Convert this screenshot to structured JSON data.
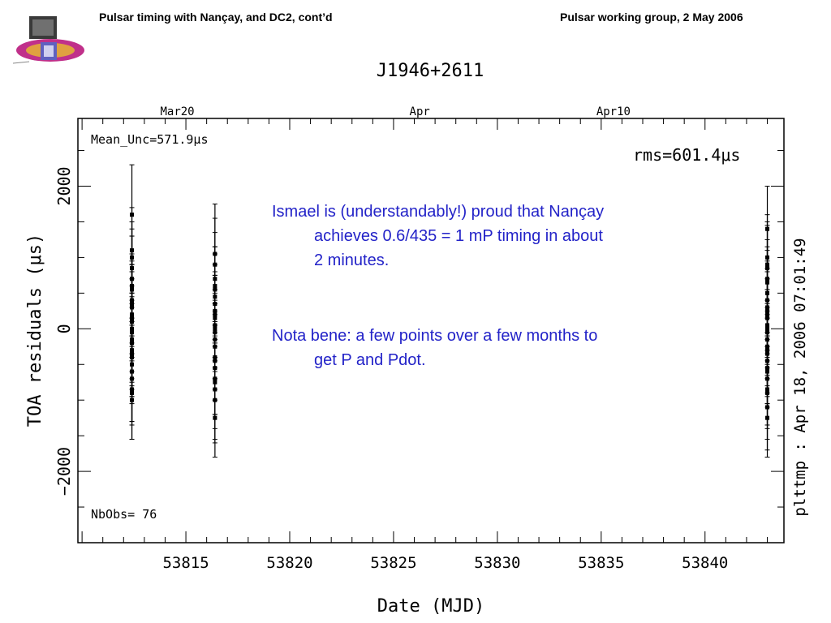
{
  "header": {
    "left": "Pulsar timing with Nançay, and DC2, cont’d",
    "right": "Pulsar working group, 2 May 2006"
  },
  "notes": {
    "line1a": "Ismael is (understandably!) proud that Nançay",
    "line1b": "achieves 0.6/435 = 1 mP timing in about",
    "line1c": "2 minutes.",
    "line2a": "Nota bene: a few points over a few months to",
    "line2b": "get P and Pdot."
  },
  "chart_data": {
    "type": "scatter",
    "title": "J1946+2611",
    "xlabel": "Date (MJD)",
    "ylabel": "TOA residuals (μs)",
    "xlim": [
      53809.8,
      53843.8
    ],
    "ylim": [
      -3000,
      2950
    ],
    "x_ticks": [
      53815,
      53820,
      53825,
      53830,
      53835,
      53840
    ],
    "y_ticks": [
      -2000,
      0,
      2000
    ],
    "y_tick_labels": [
      "−2000",
      "0",
      "2000"
    ],
    "top_axis_labels": [
      {
        "label": "Mar20",
        "mjd": 53814
      },
      {
        "label": "Apr",
        "mjd": 53826
      },
      {
        "label": "Apr10",
        "mjd": 53835
      }
    ],
    "annotations": {
      "mean_unc": "Mean_Unc=571.9μs",
      "rms": "rms=601.4μs",
      "nobs": "NbObs= 76",
      "timestamp": "plttmp : Apr 18, 2006 07:01:49"
    },
    "series": [
      {
        "mjd": 53812.4,
        "points": [
          [
            1600,
            700
          ],
          [
            1100,
            600
          ],
          [
            850,
            550
          ],
          [
            700,
            600
          ],
          [
            550,
            500
          ],
          [
            350,
            550
          ],
          [
            200,
            600
          ],
          [
            100,
            500
          ],
          [
            -50,
            550
          ],
          [
            -200,
            600
          ],
          [
            -350,
            500
          ],
          [
            -500,
            550
          ],
          [
            -700,
            600
          ],
          [
            -850,
            500
          ],
          [
            -1000,
            550
          ],
          [
            300,
            650
          ],
          [
            -300,
            650
          ],
          [
            0,
            700
          ],
          [
            1000,
            500
          ],
          [
            -900,
            650
          ],
          [
            150,
            550
          ],
          [
            -150,
            600
          ],
          [
            600,
            700
          ],
          [
            -600,
            700
          ],
          [
            400,
            500
          ],
          [
            -400,
            550
          ]
        ]
      },
      {
        "mjd": 53816.4,
        "points": [
          [
            1050,
            700
          ],
          [
            550,
            600
          ],
          [
            350,
            550
          ],
          [
            200,
            600
          ],
          [
            50,
            500
          ],
          [
            -150,
            550
          ],
          [
            -400,
            600
          ],
          [
            -700,
            500
          ],
          [
            -1250,
            550
          ],
          [
            900,
            650
          ],
          [
            450,
            600
          ],
          [
            -550,
            650
          ],
          [
            -850,
            700
          ],
          [
            0,
            550
          ],
          [
            250,
            500
          ],
          [
            -250,
            600
          ],
          [
            -1000,
            600
          ],
          [
            700,
            650
          ],
          [
            -50,
            550
          ],
          [
            150,
            600
          ],
          [
            -450,
            550
          ],
          [
            600,
            550
          ],
          [
            -750,
            650
          ]
        ]
      },
      {
        "mjd": 53843.0,
        "points": [
          [
            1400,
            600
          ],
          [
            900,
            550
          ],
          [
            650,
            500
          ],
          [
            400,
            550
          ],
          [
            250,
            600
          ],
          [
            50,
            500
          ],
          [
            -150,
            550
          ],
          [
            -350,
            600
          ],
          [
            -550,
            500
          ],
          [
            -850,
            550
          ],
          [
            -1250,
            550
          ],
          [
            850,
            650
          ],
          [
            150,
            550
          ],
          [
            -50,
            600
          ],
          [
            -450,
            600
          ],
          [
            -900,
            650
          ],
          [
            300,
            550
          ],
          [
            -250,
            550
          ],
          [
            500,
            600
          ],
          [
            -700,
            650
          ],
          [
            1000,
            600
          ],
          [
            0,
            550
          ],
          [
            -1100,
            600
          ],
          [
            200,
            500
          ],
          [
            -600,
            500
          ],
          [
            700,
            550
          ],
          [
            -300,
            600
          ]
        ]
      }
    ],
    "colors": {
      "axis": "#000000",
      "data": "#000000",
      "note_text": "#2323c8"
    }
  }
}
